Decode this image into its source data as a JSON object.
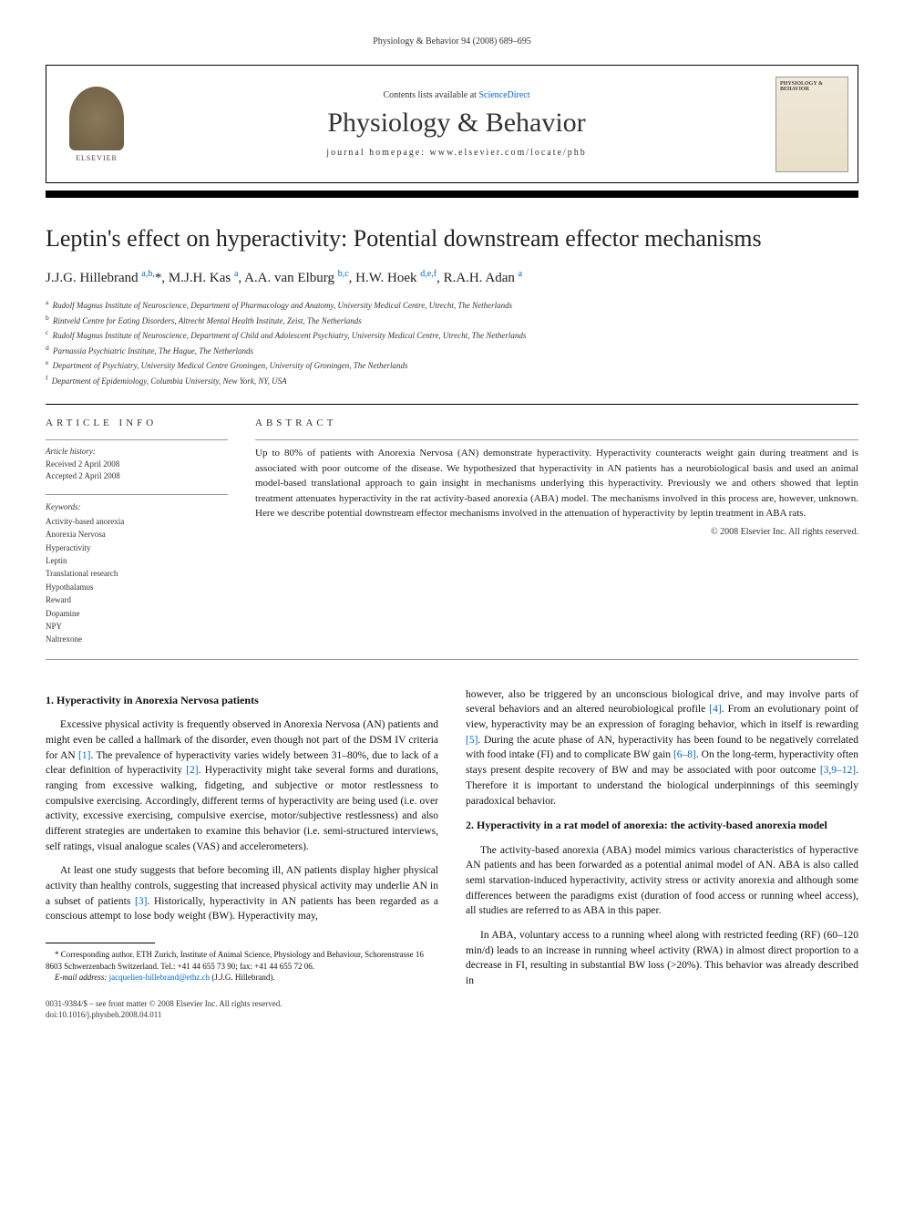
{
  "journal_ref": "Physiology & Behavior 94 (2008) 689–695",
  "header": {
    "publisher": "ELSEVIER",
    "contents_prefix": "Contents lists available at ",
    "contents_link": "ScienceDirect",
    "journal_name": "Physiology & Behavior",
    "homepage": "journal homepage: www.elsevier.com/locate/phb",
    "cover_title": "PHYSIOLOGY & BEHAVIOR"
  },
  "article": {
    "title": "Leptin's effect on hyperactivity: Potential downstream effector mechanisms",
    "authors_html": "J.J.G. Hillebrand <sup>a,b,</sup>*, M.J.H. Kas <sup>a</sup>, A.A. van Elburg <sup>b,c</sup>, H.W. Hoek <sup>d,e,f</sup>, R.A.H. Adan <sup>a</sup>",
    "affiliations": [
      {
        "sup": "a",
        "text": "Rudolf Magnus Institute of Neuroscience, Department of Pharmacology and Anatomy, University Medical Centre, Utrecht, The Netherlands"
      },
      {
        "sup": "b",
        "text": "Rintveld Centre for Eating Disorders, Altrecht Mental Health Institute, Zeist, The Netherlands"
      },
      {
        "sup": "c",
        "text": "Rudolf Magnus Institute of Neuroscience, Department of Child and Adolescent Psychiatry, University Medical Centre, Utrecht, The Netherlands"
      },
      {
        "sup": "d",
        "text": "Parnassia Psychiatric Institute, The Hague, The Netherlands"
      },
      {
        "sup": "e",
        "text": "Department of Psychiatry, University Medical Centre Groningen, University of Groningen, The Netherlands"
      },
      {
        "sup": "f",
        "text": "Department of Epidemiology, Columbia University, New York, NY, USA"
      }
    ]
  },
  "info": {
    "heading": "ARTICLE INFO",
    "history_label": "Article history:",
    "received": "Received 2 April 2008",
    "accepted": "Accepted 2 April 2008",
    "keywords_label": "Keywords:",
    "keywords": [
      "Activity-based anorexia",
      "Anorexia Nervosa",
      "Hyperactivity",
      "Leptin",
      "Translational research",
      "Hypothalamus",
      "Reward",
      "Dopamine",
      "NPY",
      "Naltrexone"
    ]
  },
  "abstract": {
    "heading": "ABSTRACT",
    "text": "Up to 80% of patients with Anorexia Nervosa (AN) demonstrate hyperactivity. Hyperactivity counteracts weight gain during treatment and is associated with poor outcome of the disease. We hypothesized that hyperactivity in AN patients has a neurobiological basis and used an animal model-based translational approach to gain insight in mechanisms underlying this hyperactivity. Previously we and others showed that leptin treatment attenuates hyperactivity in the rat activity-based anorexia (ABA) model. The mechanisms involved in this process are, however, unknown. Here we describe potential downstream effector mechanisms involved in the attenuation of hyperactivity by leptin treatment in ABA rats.",
    "copyright": "© 2008 Elsevier Inc. All rights reserved."
  },
  "sections": {
    "s1_heading": "1. Hyperactivity in Anorexia Nervosa patients",
    "s1_p1_a": "Excessive physical activity is frequently observed in Anorexia Nervosa (AN) patients and might even be called a hallmark of the disorder, even though not part of the DSM IV criteria for AN ",
    "s1_p1_cite1": "[1]",
    "s1_p1_b": ". The prevalence of hyperactivity varies widely between 31–80%, due to lack of a clear definition of hyperactivity ",
    "s1_p1_cite2": "[2]",
    "s1_p1_c": ". Hyperactivity might take several forms and durations, ranging from excessive walking, fidgeting, and subjective or motor restlessness to compulsive exercising. Accordingly, different terms of hyperactivity are being used (i.e. over activity, excessive exercising, compulsive exercise, motor/subjective restlessness) and also different strategies are undertaken to examine this behavior (i.e. semi-structured interviews, self ratings, visual analogue scales (VAS) and accelerometers).",
    "s1_p2_a": "At least one study suggests that before becoming ill, AN patients display higher physical activity than healthy controls, suggesting that increased physical activity may underlie AN in a subset of patients ",
    "s1_p2_cite1": "[3]",
    "s1_p2_b": ". Historically, hyperactivity in AN patients has been regarded as a conscious attempt to lose body weight (BW). Hyperactivity may,",
    "s1_p3_a": "however, also be triggered by an unconscious biological drive, and may involve parts of several behaviors and an altered neurobiological profile ",
    "s1_p3_cite1": "[4]",
    "s1_p3_b": ". From an evolutionary point of view, hyperactivity may be an expression of foraging behavior, which in itself is rewarding ",
    "s1_p3_cite2": "[5]",
    "s1_p3_c": ". During the acute phase of AN, hyperactivity has been found to be negatively correlated with food intake (FI) and to complicate BW gain ",
    "s1_p3_cite3": "[6–8]",
    "s1_p3_d": ". On the long-term, hyperactivity often stays present despite recovery of BW and may be associated with poor outcome ",
    "s1_p3_cite4": "[3,9–12]",
    "s1_p3_e": ". Therefore it is important to understand the biological underpinnings of this seemingly paradoxical behavior.",
    "s2_heading": "2. Hyperactivity in a rat model of anorexia: the activity-based anorexia model",
    "s2_p1": "The activity-based anorexia (ABA) model mimics various characteristics of hyperactive AN patients and has been forwarded as a potential animal model of AN. ABA is also called semi starvation-induced hyperactivity, activity stress or activity anorexia and although some differences between the paradigms exist (duration of food access or running wheel access), all studies are referred to as ABA in this paper.",
    "s2_p2": "In ABA, voluntary access to a running wheel along with restricted feeding (RF) (60–120 min/d) leads to an increase in running wheel activity (RWA) in almost direct proportion to a decrease in FI, resulting in substantial BW loss (>20%). This behavior was already described in"
  },
  "footnote": {
    "corr": "* Corresponding author. ETH Zurich, Institute of Animal Science, Physiology and Behaviour, Schorenstrasse 16 8603 Schwerzenbach Switzerland. Tel.: +41 44 655 73 90; fax: +41 44 655 72 06.",
    "email_label": "E-mail address: ",
    "email": "jacquelien-hillebrand@ethz.ch",
    "email_suffix": " (J.J.G. Hillebrand)."
  },
  "footer": {
    "line1": "0031-9384/$ – see front matter © 2008 Elsevier Inc. All rights reserved.",
    "line2": "doi:10.1016/j.physbeh.2008.04.011"
  }
}
